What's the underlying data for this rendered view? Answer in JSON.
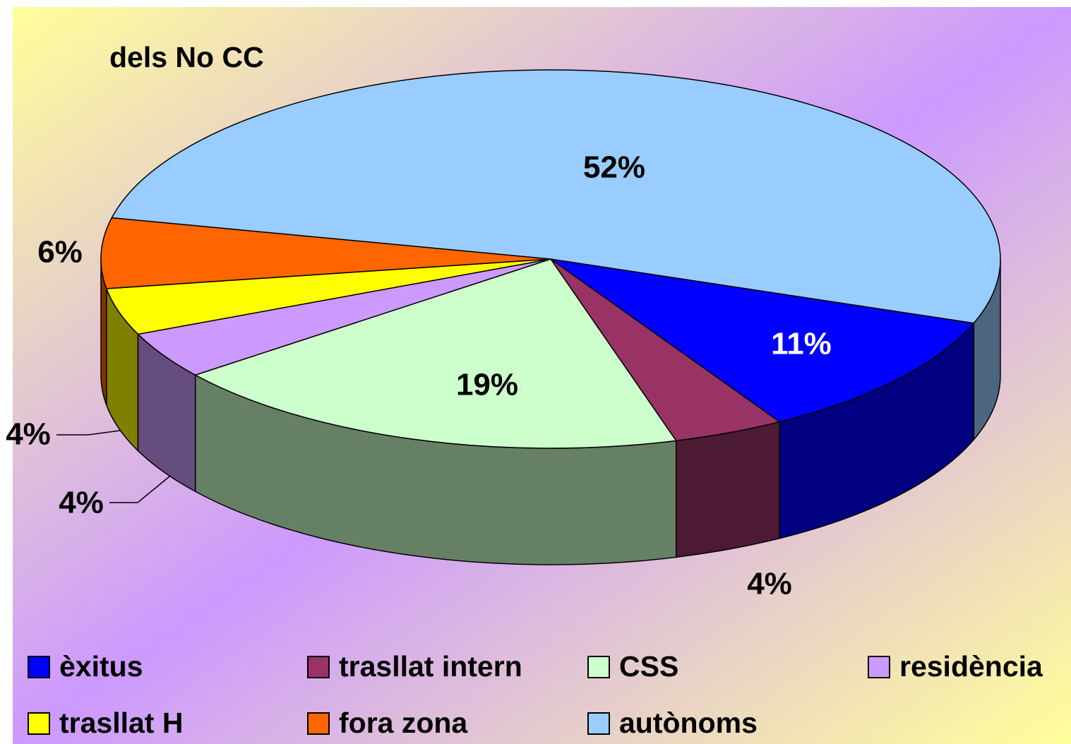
{
  "chart_data": {
    "type": "pie",
    "title": "dels No CC",
    "categories": [
      "èxitus",
      "trasllat intern",
      "CSS",
      "residència",
      "trasllat H",
      "fora zona",
      "autònoms"
    ],
    "values": [
      11,
      4,
      19,
      4,
      4,
      6,
      52
    ],
    "value_labels": [
      "11%",
      "4%",
      "19%",
      "4%",
      "4%",
      "6%",
      "52%"
    ],
    "colors": [
      "#0000ff",
      "#993366",
      "#ccffcc",
      "#cc99ff",
      "#ffff00",
      "#ff6600",
      "#99ccff"
    ],
    "legend": "bottom"
  }
}
